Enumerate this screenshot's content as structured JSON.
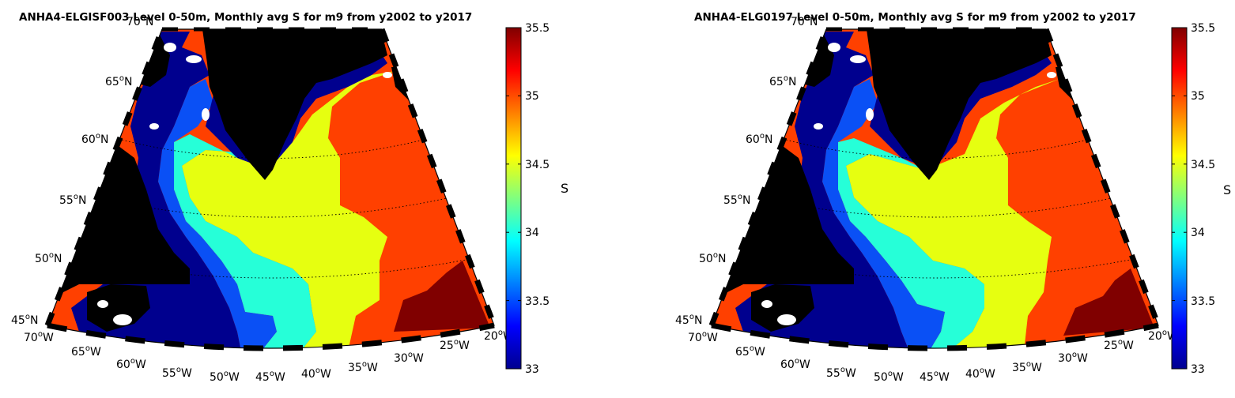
{
  "panels": [
    {
      "title": "ANHA4-ELGISF003 Level 0-50m, Monthly avg S for m9 from y2002 to y2017",
      "colorbar_label": "S"
    },
    {
      "title": "ANHA4-ELG0197 Level 0-50m, Monthly avg S for m9 from y2002 to y2017",
      "colorbar_label": "S"
    }
  ],
  "lat_labels": [
    "70",
    "65",
    "60",
    "55",
    "50",
    "45"
  ],
  "lon_labels": [
    "70",
    "65",
    "60",
    "55",
    "50",
    "45",
    "40",
    "35",
    "30",
    "25",
    "20"
  ],
  "lat_suffix": "N",
  "lon_suffix": "W",
  "colorbar_ticks": [
    "35.5",
    "35",
    "34.5",
    "34",
    "33.5",
    "33"
  ],
  "colors": {
    "land": "#000000",
    "s_lt_33_5": "#00008e",
    "s_33_5_34": "#0a50f5",
    "s_34_34_5": "#26ffd8",
    "s_34_5_35": "#e6ff10",
    "s_35_35_5": "#ff4000",
    "s_gt_35_5": "#800000"
  }
}
